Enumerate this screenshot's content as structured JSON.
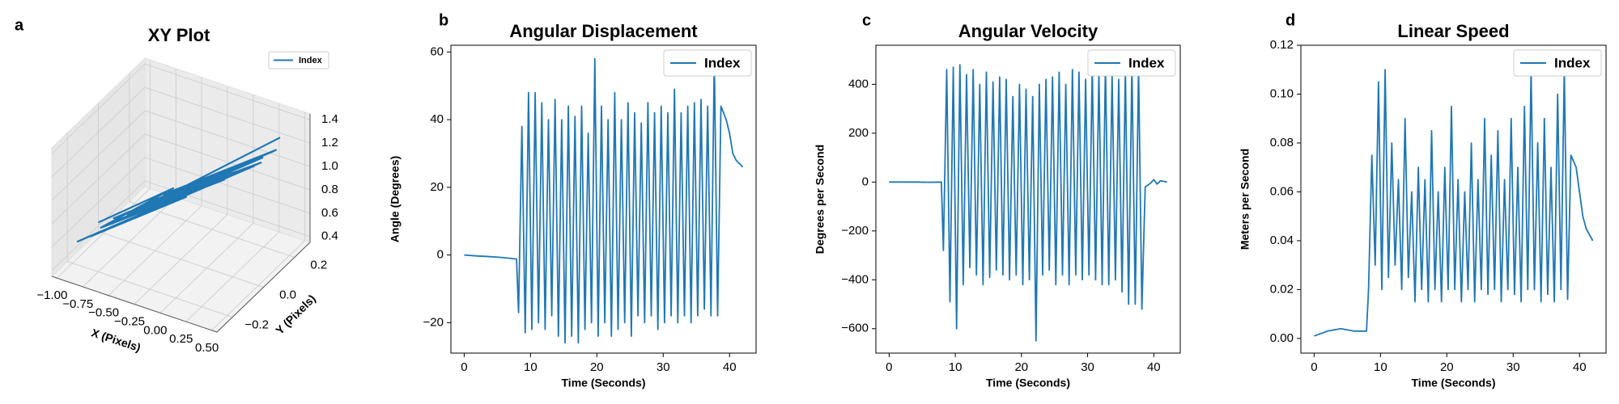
{
  "chart_data": [
    {
      "type": "line3d",
      "panel_label": "a",
      "title": "XY Plot",
      "xlabel": "X (Pixels)",
      "ylabel": "Y (Pixels)",
      "xlim": [
        -1.05,
        0.55
      ],
      "ylim": [
        -0.3,
        0.3
      ],
      "zlim": [
        0.35,
        1.45
      ],
      "xticks": [
        {
          "value": -1,
          "label": "−1.00"
        },
        {
          "value": -0.75,
          "label": "−0.75"
        },
        {
          "value": -0.5,
          "label": "−0.50"
        },
        {
          "value": -0.25,
          "label": "−0.25"
        },
        {
          "value": 0,
          "label": "0.00"
        },
        {
          "value": 0.25,
          "label": "0.25"
        },
        {
          "value": 0.5,
          "label": "0.50"
        }
      ],
      "yticks": [
        {
          "value": -0.2,
          "label": "−0.2"
        },
        {
          "value": 0,
          "label": "0.0"
        },
        {
          "value": 0.2,
          "label": "0.2"
        }
      ],
      "zticks": [
        0.4,
        0.6,
        0.8,
        {
          "value": 1,
          "label": "1.0"
        },
        1.2,
        1.4
      ],
      "legend": "upper right",
      "grid": true,
      "series": [
        {
          "name": "Index",
          "color": "#1f77b4",
          "x": [
            -0.9,
            -0.4,
            -0.8,
            0.1,
            -0.6,
            0.3,
            -0.7,
            -0.2,
            -0.85,
            0.2,
            -0.5,
            0.35,
            -0.75,
            0.0,
            -0.95,
            0.25,
            -0.45,
            0.4,
            -0.65,
            -0.1,
            -0.3,
            0.15,
            -0.55,
            0.3,
            -0.8,
            0.05,
            -0.35,
            0.38
          ],
          "y": [
            -0.1,
            0.05,
            -0.15,
            0.1,
            -0.05,
            0.15,
            -0.12,
            0.0,
            -0.18,
            0.12,
            -0.02,
            0.2,
            -0.1,
            0.08,
            -0.2,
            0.14,
            0.02,
            0.18,
            -0.08,
            0.06,
            0.0,
            0.1,
            -0.04,
            0.16,
            -0.14,
            0.08,
            0.04,
            0.22
          ],
          "z": [
            0.6,
            0.85,
            0.65,
            1.05,
            0.75,
            1.15,
            0.7,
            0.9,
            0.6,
            1.1,
            0.8,
            1.2,
            0.68,
            1.0,
            0.55,
            1.12,
            0.82,
            1.25,
            0.72,
            0.95,
            0.88,
            1.08,
            0.78,
            1.18,
            0.64,
            1.02,
            0.86,
            1.3
          ]
        }
      ]
    },
    {
      "type": "line",
      "panel_label": "b",
      "title": "Angular Displacement",
      "xlabel": "Time (Seconds)",
      "ylabel": "Angle (Degrees)",
      "xlim": [
        -2,
        44
      ],
      "ylim": [
        -29,
        62
      ],
      "xticks": [
        0,
        10,
        20,
        30,
        40
      ],
      "yticks": [
        {
          "value": -20,
          "label": "−20"
        },
        0,
        20,
        40,
        60
      ],
      "legend": "upper right",
      "x": [
        0,
        2,
        4,
        6,
        7.9,
        8.2,
        8.7,
        9.2,
        9.7,
        10.2,
        10.7,
        11.2,
        11.7,
        12.2,
        12.7,
        13.2,
        13.7,
        14.2,
        14.7,
        15.2,
        15.7,
        16.2,
        16.7,
        17.2,
        17.7,
        18.2,
        18.7,
        19.2,
        19.7,
        20.2,
        20.7,
        21.2,
        21.7,
        22.2,
        22.7,
        23.2,
        23.7,
        24.2,
        24.7,
        25.2,
        25.7,
        26.2,
        26.7,
        27.2,
        27.7,
        28.2,
        28.7,
        29.2,
        29.7,
        30.2,
        30.7,
        31.2,
        31.7,
        32.2,
        32.7,
        33.2,
        33.7,
        34.2,
        34.7,
        35.2,
        35.7,
        36.2,
        36.7,
        37.2,
        37.7,
        38.2,
        38.7,
        39.5,
        40,
        40.5,
        41,
        42
      ],
      "series": [
        {
          "name": "Index",
          "color": "#1f77b4",
          "values": [
            0,
            -0.3,
            -0.5,
            -0.8,
            -1.2,
            -17,
            38,
            -23,
            48,
            -22,
            48,
            -20,
            45,
            -22,
            40,
            -18,
            46,
            -24,
            40,
            -26,
            44,
            -24,
            41,
            -26,
            44,
            -22,
            36,
            -20,
            58,
            -24,
            44,
            -20,
            40,
            -24,
            48,
            -22,
            40,
            -20,
            45,
            -24,
            42,
            -18,
            39,
            -20,
            45,
            -18,
            42,
            -22,
            44,
            -20,
            42,
            -18,
            49,
            -20,
            42,
            -18,
            44,
            -20,
            45,
            -18,
            46,
            -16,
            44,
            -18,
            58,
            -18,
            44,
            40,
            36,
            30,
            28,
            26
          ]
        }
      ]
    },
    {
      "type": "line",
      "panel_label": "c",
      "title": "Angular Velocity",
      "xlabel": "Time (Seconds)",
      "ylabel": "Degrees per Second",
      "xlim": [
        -2,
        44
      ],
      "ylim": [
        -700,
        560
      ],
      "xticks": [
        0,
        10,
        20,
        30,
        40
      ],
      "yticks": [
        {
          "value": -600,
          "label": "−600"
        },
        {
          "value": -400,
          "label": "−400"
        },
        {
          "value": -200,
          "label": "−200"
        },
        0,
        200,
        400
      ],
      "legend": "upper right",
      "x": [
        0,
        2,
        4,
        6,
        7.9,
        8.2,
        8.7,
        9.2,
        9.7,
        10.2,
        10.7,
        11.2,
        11.7,
        12.2,
        12.7,
        13.2,
        13.7,
        14.2,
        14.7,
        15.2,
        15.7,
        16.2,
        16.7,
        17.2,
        17.7,
        18.2,
        18.7,
        19.2,
        19.7,
        20.2,
        20.7,
        21.2,
        21.7,
        22.2,
        22.7,
        23.2,
        23.7,
        24.2,
        24.7,
        25.2,
        25.7,
        26.2,
        26.7,
        27.2,
        27.7,
        28.2,
        28.7,
        29.2,
        29.7,
        30.2,
        30.7,
        31.2,
        31.7,
        32.2,
        32.7,
        33.2,
        33.7,
        34.2,
        34.7,
        35.2,
        35.7,
        36.2,
        36.7,
        37.2,
        37.7,
        38.2,
        38.7,
        39.5,
        40,
        40.5,
        41,
        42
      ],
      "series": [
        {
          "name": "Index",
          "color": "#1f77b4",
          "values": [
            0,
            0,
            0,
            -1,
            0,
            -280,
            460,
            -490,
            470,
            -600,
            480,
            -420,
            440,
            -350,
            460,
            -380,
            400,
            -420,
            450,
            -390,
            410,
            -360,
            430,
            -380,
            420,
            -400,
            350,
            -380,
            400,
            -420,
            380,
            -400,
            350,
            -650,
            400,
            -380,
            420,
            -360,
            430,
            -420,
            450,
            -380,
            400,
            -420,
            460,
            -380,
            450,
            -400,
            420,
            -380,
            470,
            -400,
            450,
            -420,
            480,
            -420,
            440,
            -400,
            420,
            -450,
            460,
            -500,
            480,
            -500,
            470,
            -520,
            -20,
            -5,
            10,
            -8,
            5,
            0
          ]
        }
      ]
    },
    {
      "type": "line",
      "panel_label": "d",
      "title": "Linear Speed",
      "xlabel": "Time (Seconds)",
      "ylabel": "Meters per Second",
      "xlim": [
        -2,
        44
      ],
      "ylim": [
        -0.006,
        0.12
      ],
      "xticks": [
        0,
        10,
        20,
        30,
        40
      ],
      "yticks": [
        {
          "value": 0,
          "label": "0.00"
        },
        {
          "value": 0.02,
          "label": "0.02"
        },
        {
          "value": 0.04,
          "label": "0.04"
        },
        {
          "value": 0.06,
          "label": "0.06"
        },
        {
          "value": 0.08,
          "label": "0.08"
        },
        {
          "value": 0.1,
          "label": "0.10"
        },
        {
          "value": 0.12,
          "label": "0.12"
        }
      ],
      "legend": "upper right",
      "x": [
        0,
        2,
        4,
        6,
        7.9,
        8.2,
        8.7,
        9.2,
        9.7,
        10.2,
        10.7,
        11.2,
        11.7,
        12.2,
        12.7,
        13.2,
        13.7,
        14.2,
        14.7,
        15.2,
        15.7,
        16.2,
        16.7,
        17.2,
        17.7,
        18.2,
        18.7,
        19.2,
        19.7,
        20.2,
        20.7,
        21.2,
        21.7,
        22.2,
        22.7,
        23.2,
        23.7,
        24.2,
        24.7,
        25.2,
        25.7,
        26.2,
        26.7,
        27.2,
        27.7,
        28.2,
        28.7,
        29.2,
        29.7,
        30.2,
        30.7,
        31.2,
        31.7,
        32.2,
        32.7,
        33.2,
        33.7,
        34.2,
        34.7,
        35.2,
        35.7,
        36.2,
        36.7,
        37.2,
        37.7,
        38.2,
        38.7,
        39.5,
        40,
        40.5,
        41,
        42
      ],
      "series": [
        {
          "name": "Index",
          "color": "#1f77b4",
          "values": [
            0.001,
            0.003,
            0.004,
            0.003,
            0.003,
            0.02,
            0.075,
            0.03,
            0.105,
            0.02,
            0.11,
            0.025,
            0.08,
            0.03,
            0.065,
            0.02,
            0.09,
            0.025,
            0.06,
            0.015,
            0.07,
            0.02,
            0.065,
            0.015,
            0.085,
            0.02,
            0.06,
            0.015,
            0.07,
            0.02,
            0.095,
            0.02,
            0.065,
            0.015,
            0.06,
            0.02,
            0.08,
            0.015,
            0.065,
            0.02,
            0.09,
            0.018,
            0.075,
            0.02,
            0.085,
            0.015,
            0.065,
            0.02,
            0.09,
            0.018,
            0.07,
            0.015,
            0.095,
            0.02,
            0.11,
            0.02,
            0.08,
            0.015,
            0.09,
            0.018,
            0.07,
            0.015,
            0.1,
            0.02,
            0.11,
            0.016,
            0.075,
            0.07,
            0.06,
            0.05,
            0.045,
            0.04
          ]
        }
      ]
    }
  ]
}
